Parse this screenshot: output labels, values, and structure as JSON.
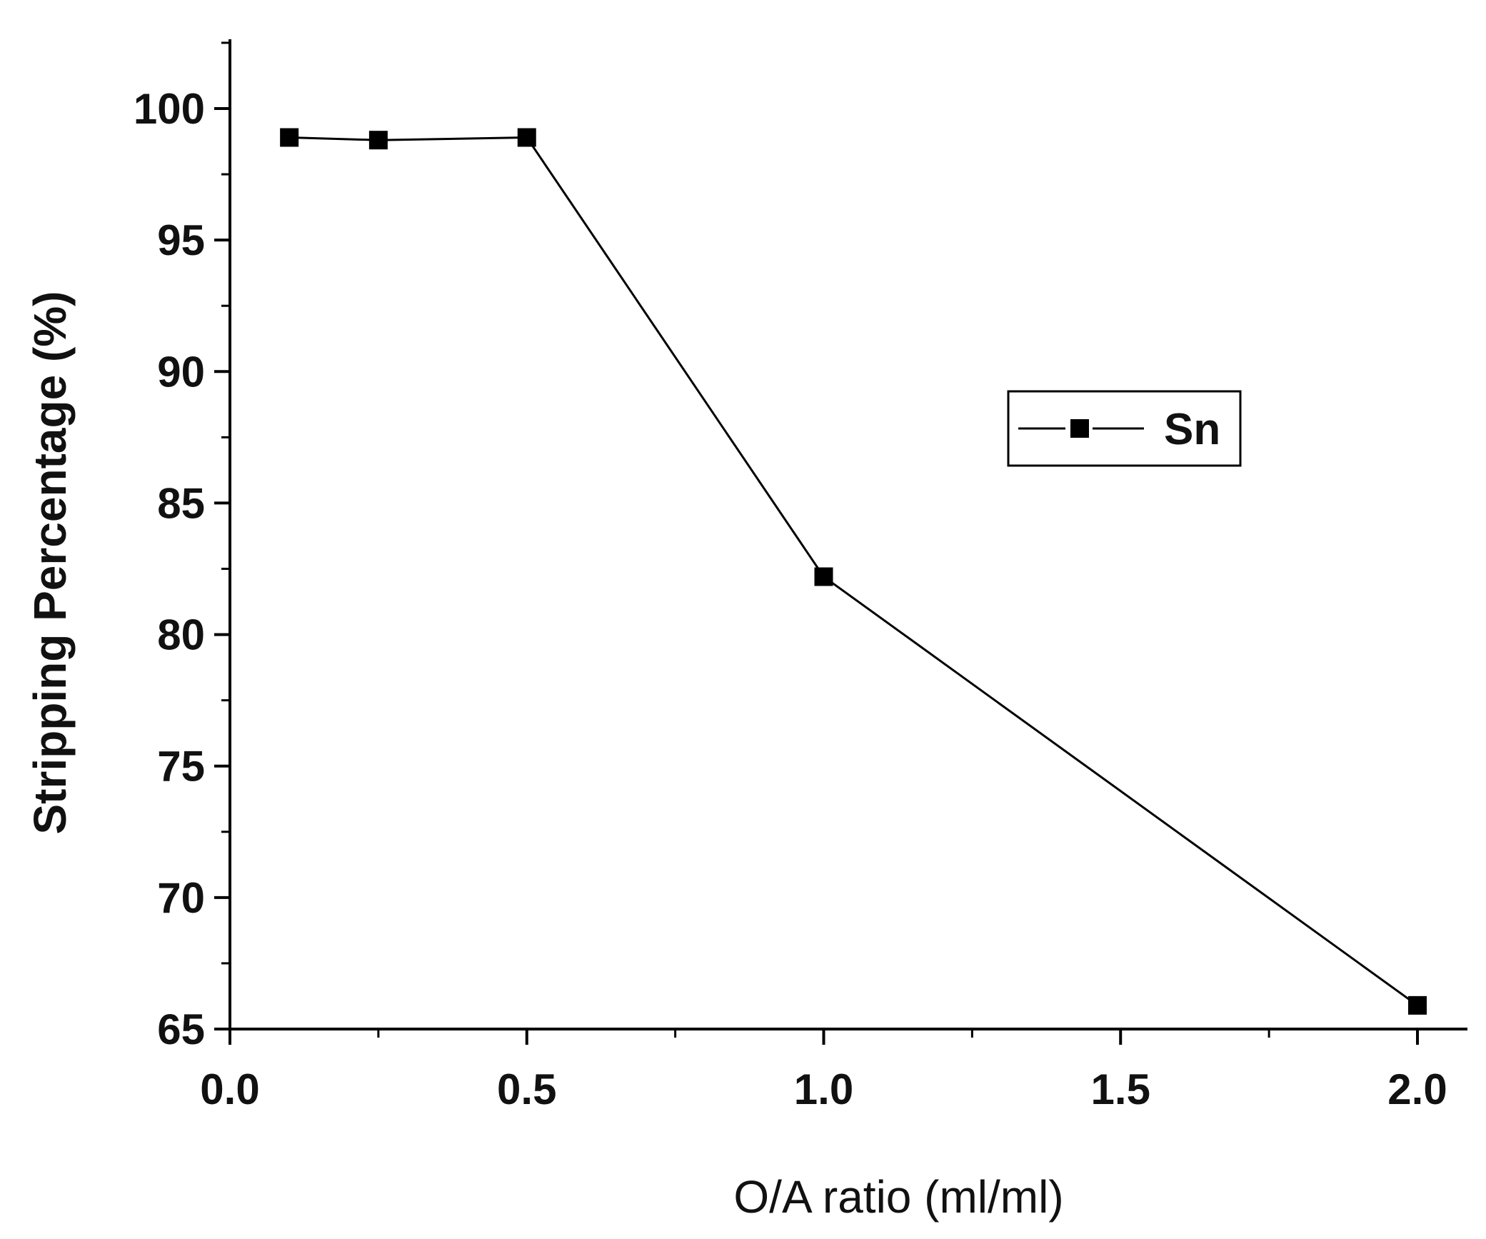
{
  "chart_data": {
    "type": "line",
    "title": "",
    "xlabel": "O/A ratio (ml/ml)",
    "ylabel": "Stripping Percentage (%)",
    "xlim": [
      0.0,
      2.1
    ],
    "ylim": [
      65,
      102.5
    ],
    "xticks": [
      0.0,
      0.5,
      1.0,
      1.5,
      2.0
    ],
    "xtick_labels": [
      "0.0",
      "0.5",
      "1.0",
      "1.5",
      "2.0"
    ],
    "yticks": [
      65,
      70,
      75,
      80,
      85,
      90,
      95,
      100
    ],
    "ytick_labels": [
      "65",
      "70",
      "75",
      "80",
      "85",
      "90",
      "95",
      "100"
    ],
    "grid": false,
    "legend": "right-middle",
    "series": [
      {
        "name": "Sn",
        "marker": "square",
        "color": "#000000",
        "x": [
          0.1,
          0.25,
          0.5,
          1.0,
          2.0
        ],
        "y": [
          98.9,
          98.8,
          98.9,
          82.2,
          65.9
        ]
      }
    ]
  }
}
